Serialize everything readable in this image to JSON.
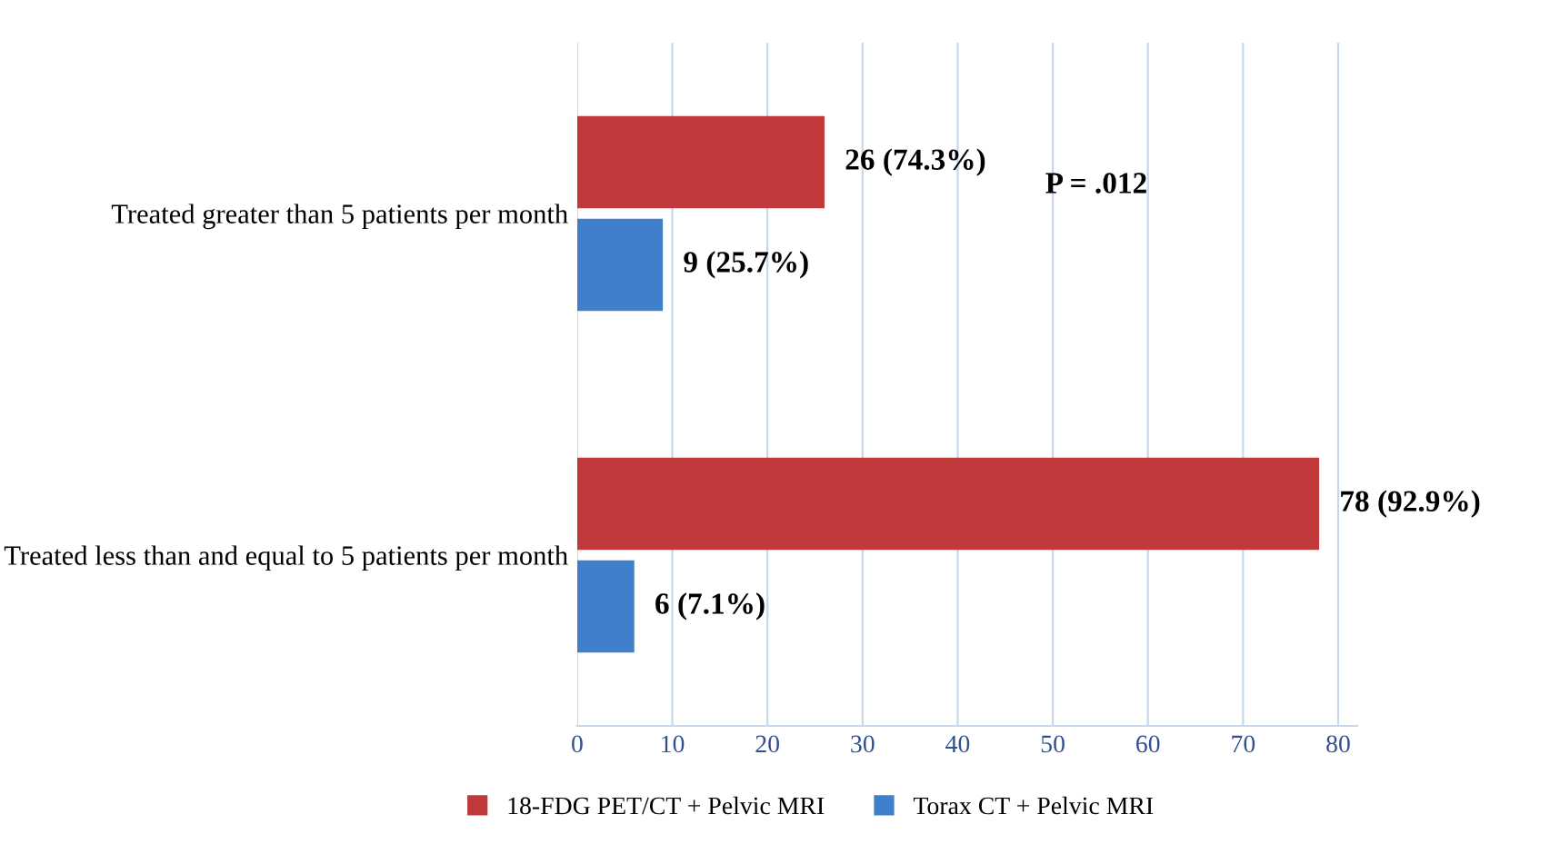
{
  "chart_data": {
    "type": "bar",
    "orientation": "horizontal",
    "categories": [
      "Treated greater than 5 patients per month",
      "Treated less than and equal to 5 patients per month"
    ],
    "series": [
      {
        "name": "18-FDG PET/CT + Pelvic MRI",
        "color": "#c0393b",
        "values": [
          26,
          78
        ],
        "value_labels": [
          "26 (74.3%)",
          "78 (92.9%)"
        ]
      },
      {
        "name": "Torax CT + Pelvic MRI",
        "color": "#3f7fcc",
        "values": [
          9,
          6
        ],
        "value_labels": [
          "9 (25.7%)",
          "6 (7.1%)"
        ]
      }
    ],
    "xlim": [
      0,
      82
    ],
    "xticks": [
      0,
      10,
      20,
      30,
      40,
      50,
      60,
      70,
      80
    ],
    "grid": "x",
    "legend": "bottom",
    "annotations": [
      "P = .012"
    ]
  }
}
